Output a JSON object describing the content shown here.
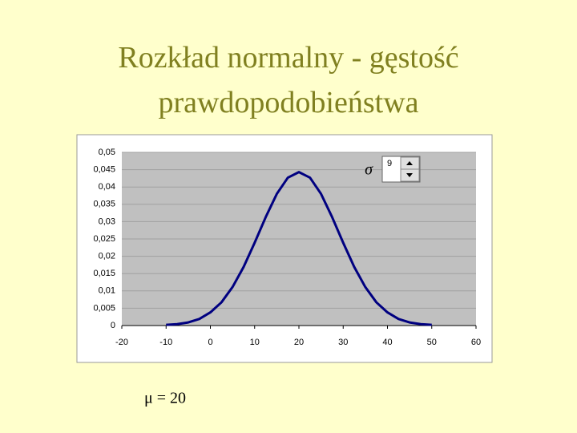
{
  "chart_data": {
    "type": "line",
    "title": "Rozkład normalny - gęstość prawdopodobieństwa",
    "x": [
      -10,
      -7.5,
      -5,
      -2.5,
      0,
      2.5,
      5,
      7.5,
      10,
      12.5,
      15,
      17.5,
      20,
      22.5,
      25,
      27.5,
      30,
      32.5,
      35,
      37.5,
      40,
      42.5,
      45,
      47.5,
      50
    ],
    "series": [
      {
        "color": "#000080",
        "values": [
          0.0002,
          0.0004,
          0.0009,
          0.0019,
          0.0038,
          0.0067,
          0.0111,
          0.0169,
          0.0239,
          0.0313,
          0.038,
          0.0427,
          0.0443,
          0.0427,
          0.038,
          0.0313,
          0.0239,
          0.0169,
          0.0111,
          0.0067,
          0.0038,
          0.0019,
          0.0009,
          0.0004,
          0.0002
        ]
      }
    ],
    "xlim": [
      -20,
      60
    ],
    "xticks": [
      -20,
      -10,
      0,
      10,
      20,
      30,
      40,
      50,
      60
    ],
    "ylim": [
      0,
      0.05
    ],
    "yticks": [
      0,
      {
        "value": 0.005,
        "label": "0,005"
      },
      {
        "value": 0.01,
        "label": "0,01"
      },
      {
        "value": 0.015,
        "label": "0,015"
      },
      {
        "value": 0.02,
        "label": "0,02"
      },
      {
        "value": 0.025,
        "label": "0,025"
      },
      {
        "value": 0.03,
        "label": "0,03"
      },
      {
        "value": 0.035,
        "label": "0,035"
      },
      {
        "value": 0.04,
        "label": "0,04"
      },
      {
        "value": 0.045,
        "label": "0,045"
      },
      {
        "value": 0.05,
        "label": "0,05"
      }
    ],
    "grid": true,
    "sigma_label": "σ",
    "sigma_value": 9,
    "mu_label": "μ = 20"
  }
}
